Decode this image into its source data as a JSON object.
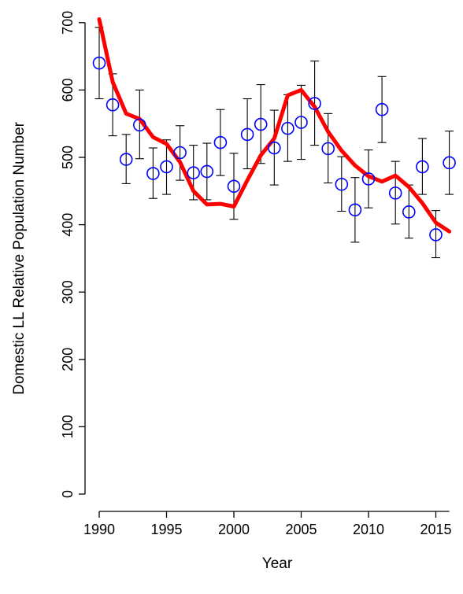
{
  "chart_data": {
    "type": "scatter",
    "title": "",
    "xlabel": "Year",
    "ylabel": "Domestic LL Relative Population Number",
    "xlim": [
      1990,
      2016
    ],
    "ylim": [
      0,
      700
    ],
    "x_ticks": [
      "1990",
      "1995",
      "2000",
      "2005",
      "2010",
      "2015"
    ],
    "y_ticks": [
      "0",
      "100",
      "200",
      "300",
      "400",
      "500",
      "600",
      "700"
    ],
    "grid": false,
    "series": [
      {
        "kind": "points_with_error_bars",
        "color": "#0000ff",
        "points": [
          {
            "x": 1990,
            "y": 640,
            "lower": 587,
            "upper": 693
          },
          {
            "x": 1991,
            "y": 578,
            "lower": 532,
            "upper": 624
          },
          {
            "x": 1992,
            "y": 497,
            "lower": 461,
            "upper": 534
          },
          {
            "x": 1993,
            "y": 548,
            "lower": 498,
            "upper": 600
          },
          {
            "x": 1994,
            "y": 476,
            "lower": 439,
            "upper": 514
          },
          {
            "x": 1995,
            "y": 486,
            "lower": 445,
            "upper": 526
          },
          {
            "x": 1996,
            "y": 507,
            "lower": 466,
            "upper": 547
          },
          {
            "x": 1997,
            "y": 477,
            "lower": 437,
            "upper": 518
          },
          {
            "x": 1998,
            "y": 479,
            "lower": 437,
            "upper": 521
          },
          {
            "x": 1999,
            "y": 522,
            "lower": 473,
            "upper": 571
          },
          {
            "x": 2000,
            "y": 457,
            "lower": 408,
            "upper": 506
          },
          {
            "x": 2001,
            "y": 534,
            "lower": 483,
            "upper": 587
          },
          {
            "x": 2002,
            "y": 549,
            "lower": 491,
            "upper": 608
          },
          {
            "x": 2003,
            "y": 514,
            "lower": 459,
            "upper": 570
          },
          {
            "x": 2004,
            "y": 543,
            "lower": 494,
            "upper": 593
          },
          {
            "x": 2005,
            "y": 552,
            "lower": 497,
            "upper": 607
          },
          {
            "x": 2006,
            "y": 580,
            "lower": 518,
            "upper": 643
          },
          {
            "x": 2007,
            "y": 513,
            "lower": 462,
            "upper": 565
          },
          {
            "x": 2008,
            "y": 460,
            "lower": 420,
            "upper": 501
          },
          {
            "x": 2009,
            "y": 422,
            "lower": 374,
            "upper": 470
          },
          {
            "x": 2010,
            "y": 468,
            "lower": 425,
            "upper": 511
          },
          {
            "x": 2011,
            "y": 571,
            "lower": 522,
            "upper": 620
          },
          {
            "x": 2012,
            "y": 447,
            "lower": 401,
            "upper": 494
          },
          {
            "x": 2013,
            "y": 419,
            "lower": 380,
            "upper": 459
          },
          {
            "x": 2014,
            "y": 486,
            "lower": 445,
            "upper": 528
          },
          {
            "x": 2015,
            "y": 385,
            "lower": 351,
            "upper": 421
          },
          {
            "x": 2016,
            "y": 492,
            "lower": 445,
            "upper": 539
          }
        ]
      },
      {
        "kind": "line",
        "color": "#ff0000",
        "x": [
          1990,
          1991,
          1992,
          1993,
          1994,
          1995,
          1996,
          1997,
          1998,
          1999,
          2000,
          2001,
          2002,
          2003,
          2004,
          2005,
          2006,
          2007,
          2008,
          2009,
          2010,
          2011,
          2012,
          2013,
          2014,
          2015,
          2016
        ],
        "values": [
          705,
          612,
          565,
          557,
          530,
          520,
          493,
          450,
          430,
          431,
          427,
          466,
          503,
          528,
          592,
          600,
          575,
          538,
          510,
          488,
          472,
          464,
          473,
          456,
          432,
          403,
          390
        ]
      }
    ]
  }
}
